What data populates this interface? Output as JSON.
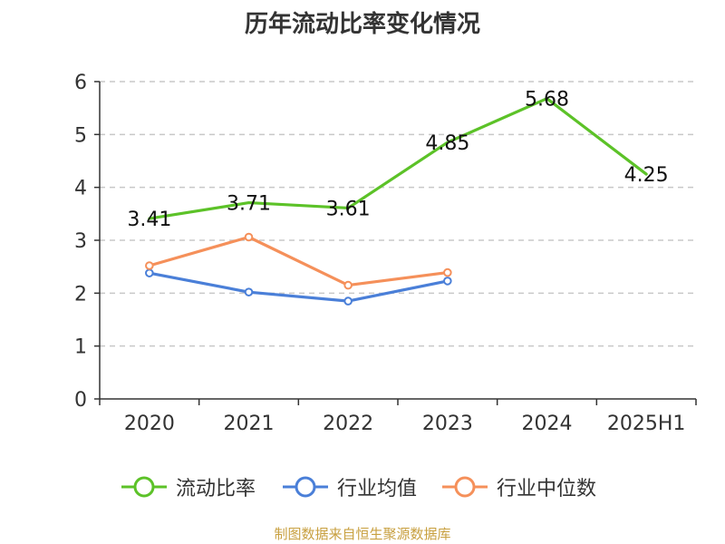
{
  "chart_data": {
    "type": "line",
    "title": "历年流动比率变化情况",
    "categories": [
      "2020",
      "2021",
      "2022",
      "2023",
      "2024",
      "2025H1"
    ],
    "ylim": [
      0,
      6
    ],
    "yticks": [
      "0",
      "1",
      "2",
      "3",
      "4",
      "5",
      "6"
    ],
    "grid": "horizontal-dashed",
    "legend_position": "bottom",
    "series": [
      {
        "name": "流动比率",
        "color": "#5cc228",
        "values": [
          3.41,
          3.71,
          3.61,
          4.85,
          5.68,
          4.25
        ],
        "labels": [
          "3.41",
          "3.71",
          "3.61",
          "4.85",
          "5.68",
          "4.25"
        ]
      },
      {
        "name": "行业均值",
        "color": "#4a7fd8",
        "values": [
          2.38,
          2.02,
          1.85,
          2.23,
          null,
          null
        ]
      },
      {
        "name": "行业中位数",
        "color": "#f5905a",
        "values": [
          2.52,
          3.06,
          2.15,
          2.39,
          null,
          null
        ]
      }
    ]
  },
  "source_note": "制图数据来自恒生聚源数据库"
}
